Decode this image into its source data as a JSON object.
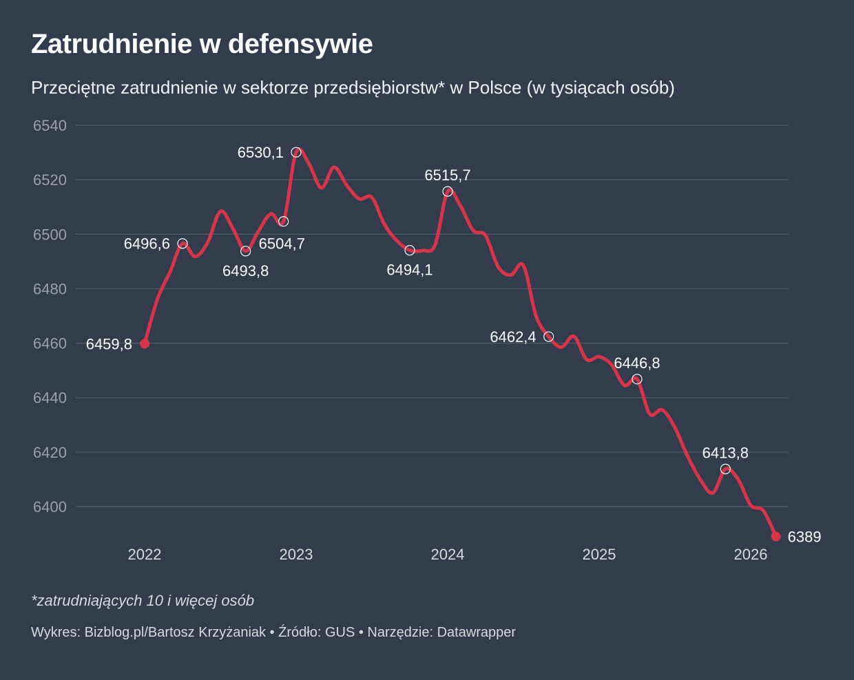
{
  "header": {
    "title": "Zatrudnienie w defensywie",
    "subtitle": "Przeciętne zatrudnienie w sektorze przedsiębiorstw* w Polsce (w tysiącach osób)"
  },
  "footer": {
    "note": "*zatrudniających 10 i więcej osób",
    "credits": "Wykres: Bizblog.pl/Bartosz Krzyżaniak • Źródło: GUS • Narzędzie: Datawrapper"
  },
  "chart_data": {
    "type": "line",
    "title": "Zatrudnienie w defensywie",
    "subtitle": "Przeciętne zatrudnienie w sektorze przedsiębiorstw* w Polsce (w tysiącach osób)",
    "xlabel": "",
    "ylabel": "",
    "ylim": [
      6388,
      6540
    ],
    "yticks": [
      6400,
      6420,
      6440,
      6460,
      6480,
      6500,
      6520,
      6540
    ],
    "ytick_labels": [
      "6400",
      "6420",
      "6440",
      "6460",
      "6480",
      "6500",
      "6520",
      "6540"
    ],
    "xticks": [
      {
        "label": "2022",
        "index": 0
      },
      {
        "label": "2023",
        "index": 12
      },
      {
        "label": "2024",
        "index": 24
      },
      {
        "label": "2025",
        "index": 36
      },
      {
        "label": "2026",
        "index": 48
      }
    ],
    "grid": "horizontal",
    "legend": "none",
    "line_color": "#d7344a",
    "x_unit": "month (index 0 = Jan 2022)",
    "series": [
      {
        "name": "Przeciętne zatrudnienie",
        "values": [
          6459.8,
          6476,
          6486,
          6496.6,
          6491.8,
          6497,
          6508.4,
          6502,
          6493.8,
          6501,
          6507.5,
          6504.7,
          6530.1,
          6526,
          6517,
          6524.6,
          6518,
          6513,
          6513.5,
          6503.5,
          6497.5,
          6494.1,
          6494,
          6496,
          6515.7,
          6510.5,
          6501.5,
          6499.5,
          6488,
          6485,
          6488.5,
          6470,
          6462.4,
          6458.5,
          6462.5,
          6454,
          6455,
          6452,
          6444.5,
          6446.8,
          6434,
          6435.5,
          6429,
          6418.5,
          6410,
          6405,
          6413.8,
          6410,
          6400.5,
          6398.5,
          6389
        ]
      }
    ],
    "annotations": [
      {
        "index": 0,
        "text": "6459,8",
        "marker": "dot",
        "position": "left"
      },
      {
        "index": 3,
        "text": "6496,6",
        "marker": "circle",
        "position": "left"
      },
      {
        "index": 8,
        "text": "6493,8",
        "marker": "circle",
        "position": "below"
      },
      {
        "index": 11,
        "text": "6504,7",
        "marker": "circle",
        "position": "below-right"
      },
      {
        "index": 12,
        "text": "6530,1",
        "marker": "circle",
        "position": "left"
      },
      {
        "index": 21,
        "text": "6494,1",
        "marker": "circle",
        "position": "below"
      },
      {
        "index": 24,
        "text": "6515,7",
        "marker": "circle",
        "position": "above"
      },
      {
        "index": 32,
        "text": "6462,4",
        "marker": "circle",
        "position": "left"
      },
      {
        "index": 39,
        "text": "6446,8",
        "marker": "circle",
        "position": "above"
      },
      {
        "index": 46,
        "text": "6413,8",
        "marker": "circle",
        "position": "above"
      },
      {
        "index": 50,
        "text": "6389",
        "marker": "dot",
        "position": "right"
      }
    ]
  }
}
